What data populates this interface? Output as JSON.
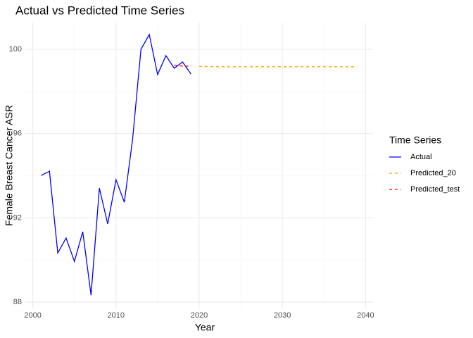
{
  "chart_data": {
    "type": "line",
    "title": "Actual vs Predicted Time Series",
    "x_label": "Year",
    "y_label": "Female Breast Cancer ASR",
    "legend_title": "Time Series",
    "legend": "right",
    "grid": true,
    "xlim": [
      1999.1,
      2040.9
    ],
    "xticks": [
      2000,
      2010,
      2020,
      2030,
      2040
    ],
    "minor_xticks": [
      2005,
      2015,
      2025,
      2035
    ],
    "ylim": [
      87.7,
      101.27
    ],
    "yticks": [
      88,
      92,
      96,
      100
    ],
    "minor_yticks": [
      90,
      94,
      98
    ],
    "series": [
      {
        "name": "Actual",
        "color": "#0000ff",
        "dashed": false,
        "x": [
          2001,
          2002,
          2003,
          2004,
          2005,
          2006,
          2007,
          2008,
          2009,
          2010,
          2011,
          2012,
          2013,
          2014,
          2015,
          2016,
          2017,
          2018,
          2019
        ],
        "values": [
          94.01,
          94.21,
          90.33,
          91.04,
          89.93,
          91.34,
          88.33,
          93.41,
          91.71,
          93.81,
          92.74,
          95.75,
          100.0,
          100.7,
          98.8,
          99.7,
          99.1,
          99.4,
          98.83
        ]
      },
      {
        "name": "Predicted_20",
        "color": "#ffa500",
        "dashed": true,
        "x": [
          2020,
          2021,
          2022,
          2023,
          2024,
          2025,
          2026,
          2027,
          2028,
          2029,
          2030,
          2031,
          2032,
          2033,
          2034,
          2035,
          2036,
          2037,
          2038,
          2039
        ],
        "values": [
          99.19,
          99.18,
          99.17,
          99.17,
          99.17,
          99.17,
          99.17,
          99.17,
          99.17,
          99.17,
          99.17,
          99.17,
          99.17,
          99.17,
          99.17,
          99.17,
          99.17,
          99.17,
          99.17,
          99.17
        ]
      },
      {
        "name": "Predicted_test",
        "color": "#ff0000",
        "dashed": true,
        "x": [
          2017,
          2018,
          2019
        ],
        "values": [
          99.25,
          99.2,
          99.2
        ]
      }
    ]
  }
}
